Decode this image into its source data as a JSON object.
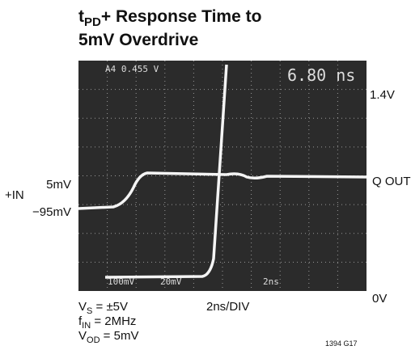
{
  "title": {
    "t": "t",
    "sub": "PD",
    "rest": "+ Response Time to",
    "line2": "5mV Overdrive"
  },
  "left_labels": {
    "high": "5mV",
    "input": "+IN",
    "low": "−95mV"
  },
  "right_labels": {
    "top": "1.4V",
    "output": "Q OUT",
    "bottom": "0V"
  },
  "scope_readouts": {
    "channel": "A4  0.455 V",
    "delay": "6.80 ns",
    "ch1_scale": "100mV",
    "ch2_scale": "20mV",
    "time_scale": "2ns"
  },
  "time_base": "2ns/DIV",
  "conditions": [
    {
      "symbol": "V",
      "sub": "S",
      "rest": " = ±5V"
    },
    {
      "symbol": "f",
      "sub": "IN",
      "rest": " = 2MHz"
    },
    {
      "symbol": "V",
      "sub": "OD",
      "rest": " = 5mV"
    }
  ],
  "figure_id": "1394 G17"
}
